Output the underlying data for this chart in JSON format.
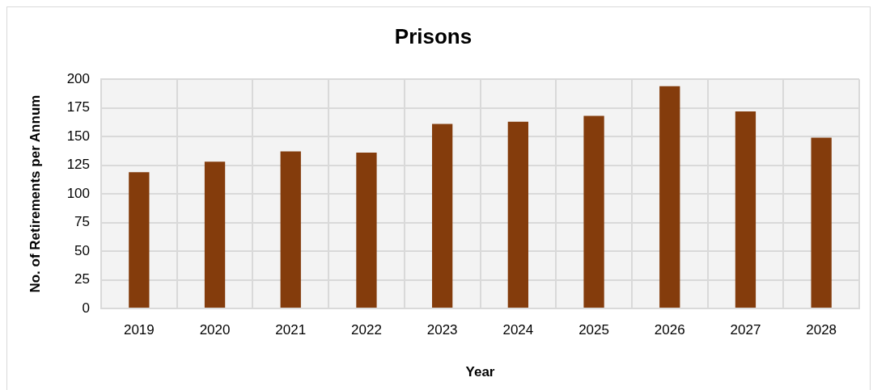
{
  "chart_data": {
    "type": "bar",
    "title": "Prisons",
    "xlabel": "Year",
    "ylabel": "No. of Retirements per Annum",
    "categories": [
      "2019",
      "2020",
      "2021",
      "2022",
      "2023",
      "2024",
      "2025",
      "2026",
      "2027",
      "2028"
    ],
    "values": [
      119,
      128,
      137,
      136,
      161,
      163,
      168,
      194,
      172,
      149
    ],
    "color": "#843c0c",
    "ylim": [
      0,
      200
    ],
    "yticks": [
      0,
      25,
      50,
      75,
      100,
      125,
      150,
      175,
      200
    ],
    "grid": true
  }
}
